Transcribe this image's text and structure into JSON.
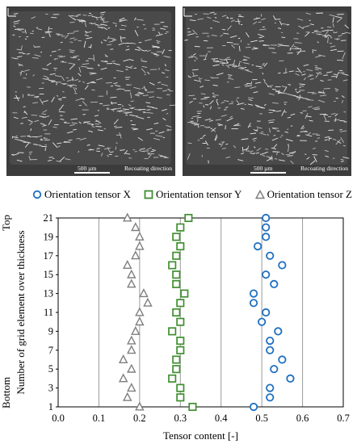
{
  "micrographs": [
    {
      "scale_label": "500 µm",
      "direction_label": "Recoating direction",
      "axis_letter": "z"
    },
    {
      "scale_label": "500 µm",
      "direction_label": "Recoating direction",
      "axis_letter": "x"
    }
  ],
  "chart_data": {
    "type": "scatter",
    "xlabel": "Tensor content [-]",
    "ylabel": "Number of grid element over thickness",
    "xlim": [
      0.0,
      0.7
    ],
    "ylim": [
      1,
      21
    ],
    "xticks": [
      "0.0",
      "0.1",
      "0.2",
      "0.3",
      "0.4",
      "0.5",
      "0.6",
      "0.7"
    ],
    "yticks": [
      "1",
      "3",
      "5",
      "7",
      "9",
      "11",
      "13",
      "15",
      "17",
      "19",
      "21"
    ],
    "y_end_labels": {
      "top": "Top",
      "bottom": "Bottom"
    },
    "grid": "vertical",
    "legend_position": "top",
    "y": [
      1,
      2,
      3,
      4,
      5,
      6,
      7,
      8,
      9,
      10,
      11,
      12,
      13,
      14,
      15,
      16,
      17,
      18,
      19,
      20,
      21
    ],
    "series": [
      {
        "name": "Orientation tensor X",
        "marker": "circle",
        "color": "#1f6fc1",
        "values": [
          0.48,
          0.52,
          0.52,
          0.57,
          0.53,
          0.55,
          0.52,
          0.52,
          0.54,
          0.5,
          0.51,
          0.48,
          0.48,
          0.53,
          0.51,
          0.55,
          0.52,
          0.49,
          0.51,
          0.51,
          0.51
        ]
      },
      {
        "name": "Orientation tensor Y",
        "marker": "square",
        "color": "#3f8f2f",
        "values": [
          0.33,
          0.3,
          0.3,
          0.28,
          0.29,
          0.29,
          0.3,
          0.3,
          0.28,
          0.3,
          0.29,
          0.3,
          0.31,
          0.29,
          0.29,
          0.28,
          0.29,
          0.3,
          0.29,
          0.3,
          0.32
        ]
      },
      {
        "name": "Orientation tensor Z",
        "marker": "triangle",
        "color": "#7f7f7f",
        "values": [
          0.2,
          0.17,
          0.18,
          0.16,
          0.18,
          0.16,
          0.18,
          0.18,
          0.19,
          0.2,
          0.2,
          0.22,
          0.21,
          0.18,
          0.18,
          0.17,
          0.19,
          0.2,
          0.2,
          0.19,
          0.17
        ]
      }
    ]
  }
}
